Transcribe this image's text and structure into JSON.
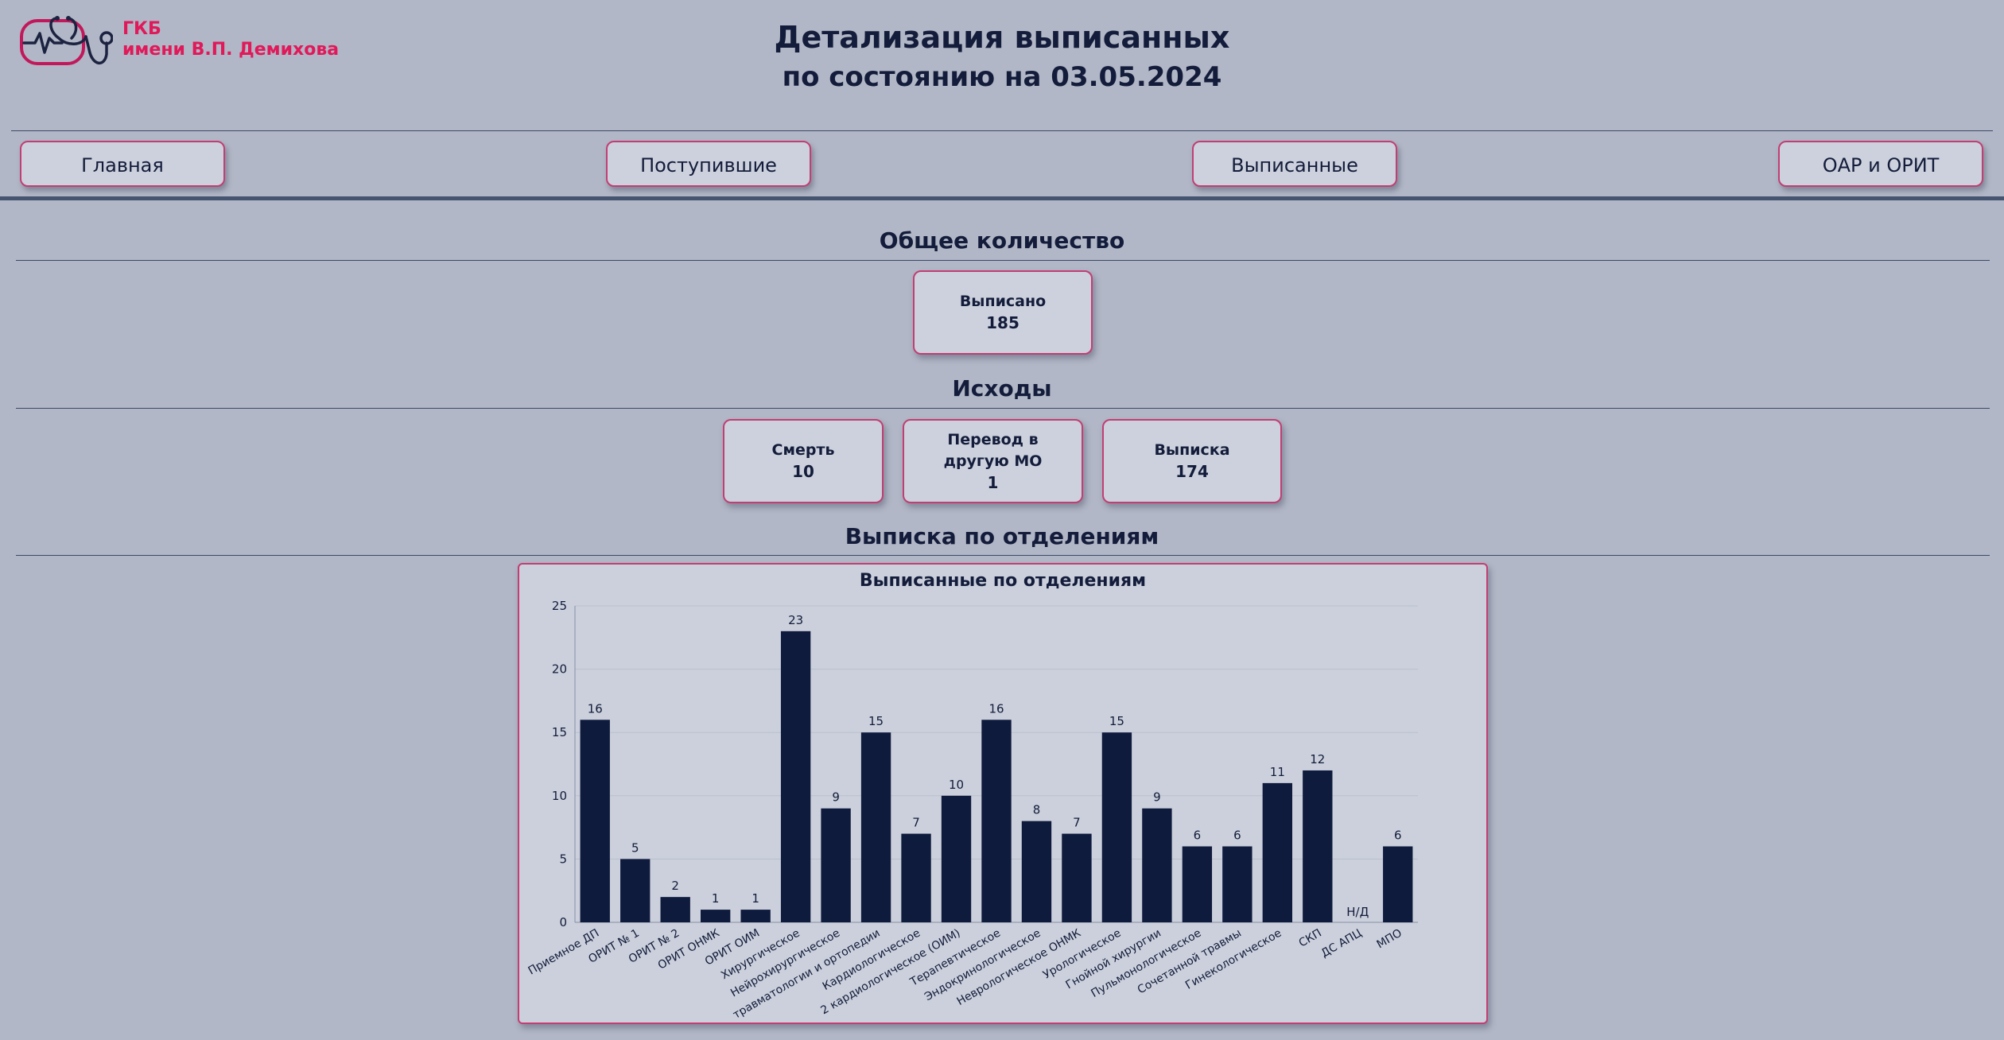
{
  "header": {
    "org_line1": "ГКБ",
    "org_line2": "имени В.П. Демихова",
    "title_line1": "Детализация выписанных",
    "title_line2": "по состоянию на 03.05.2024"
  },
  "nav": [
    {
      "label": "Главная"
    },
    {
      "label": "Поступившие"
    },
    {
      "label": "Выписанные"
    },
    {
      "label": "ОАР и ОРИТ"
    }
  ],
  "total": {
    "section_title": "Общее количество",
    "label": "Выписано",
    "value": "185"
  },
  "outcomes": {
    "section_title": "Исходы",
    "cards": [
      {
        "label": "Смерть",
        "value": "10"
      },
      {
        "label": "Перевод в другую МО",
        "value": "1"
      },
      {
        "label": "Выписка",
        "value": "174"
      }
    ]
  },
  "departments": {
    "section_title": "Выписка по отделениям"
  },
  "colors": {
    "accent": "#e0195a",
    "bar": "#0f1b3d",
    "background": "#b1b7c6",
    "card": "#ccd1dd"
  },
  "chart_data": {
    "type": "bar",
    "title": "Выписанные по отделениям",
    "categories": [
      "Приемное ДП",
      "ОРИТ № 1",
      "ОРИТ № 2",
      "ОРИТ ОНМК",
      "ОРИТ ОИМ",
      "Хирургическое",
      "Нейрохирургическое",
      "травматологии и ортопедии",
      "Кардиологическое",
      "2 кардиологическое (ОИМ)",
      "Терапевтическое",
      "Эндокринологическое",
      "Неврологическое ОНМК",
      "Урологическое",
      "Гнойной хирургии",
      "Пульмонологическое",
      "Сочетанной травмы",
      "Гинекологическое",
      "СКП",
      "ДС АПЦ",
      "МПО"
    ],
    "values": [
      16,
      5,
      2,
      1,
      1,
      23,
      9,
      15,
      7,
      10,
      16,
      8,
      7,
      15,
      9,
      6,
      6,
      11,
      12,
      null,
      6
    ],
    "value_labels": [
      "16",
      "5",
      "2",
      "1",
      "1",
      "23",
      "9",
      "15",
      "7",
      "10",
      "16",
      "8",
      "7",
      "15",
      "9",
      "6",
      "6",
      "11",
      "12",
      "Н/Д",
      "6"
    ],
    "yticks": [
      "0",
      "5",
      "10",
      "15",
      "20",
      "25"
    ],
    "ylim": [
      0,
      25
    ],
    "grid": true,
    "legend": "none"
  }
}
